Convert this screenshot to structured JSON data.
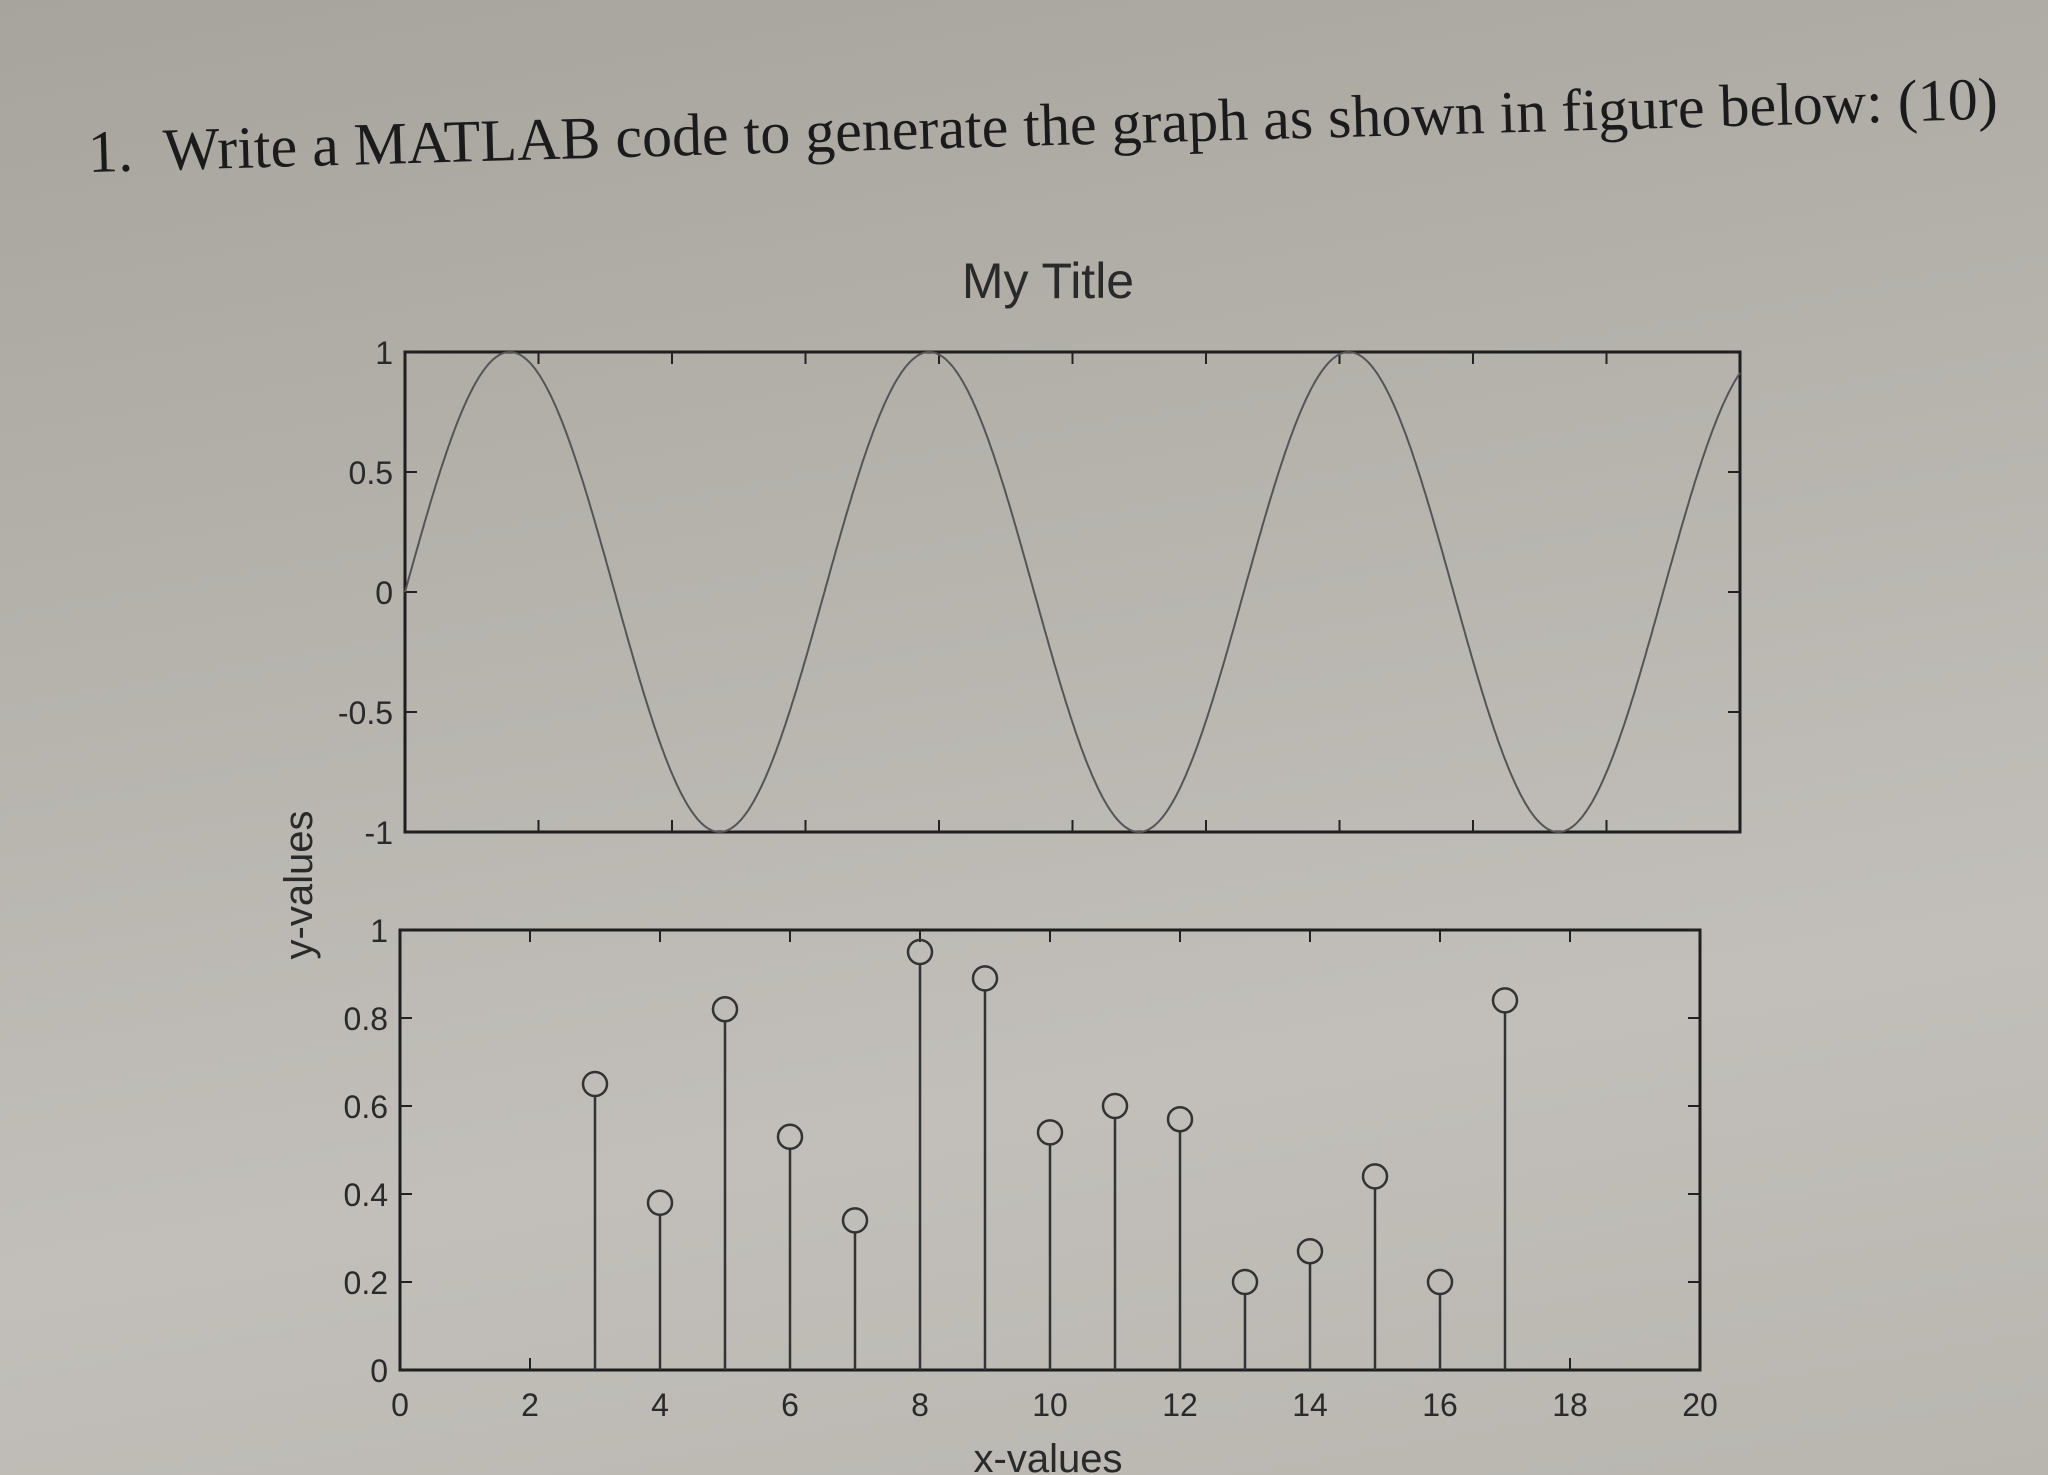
{
  "question": {
    "number": "1.",
    "text": "Write a MATLAB code to generate the graph as shown in figure below: (10)"
  },
  "chart_data": [
    {
      "type": "line",
      "title": "My Title",
      "ylabel": "y-values",
      "xlabel": "",
      "xlim": [
        0,
        20
      ],
      "ylim": [
        -1,
        1
      ],
      "yticks": [
        "1",
        "0.5",
        "0",
        "-0.5",
        "-1"
      ],
      "function": "y = sin(x)",
      "grid": false,
      "color": "#555555"
    },
    {
      "type": "stem",
      "title": "",
      "xlabel": "x-values",
      "ylabel": "",
      "xlim": [
        0,
        20
      ],
      "ylim": [
        0,
        1
      ],
      "xticks": [
        "0",
        "2",
        "4",
        "6",
        "8",
        "10",
        "12",
        "14",
        "16",
        "18",
        "20"
      ],
      "yticks": [
        "1",
        "0.8",
        "0.6",
        "0.4",
        "0.2",
        "0"
      ],
      "x": [
        3,
        4,
        5,
        6,
        7,
        8,
        9,
        10,
        11,
        12,
        13,
        14,
        15,
        16,
        17
      ],
      "values": [
        0.65,
        0.38,
        0.82,
        0.53,
        0.34,
        0.95,
        0.89,
        0.54,
        0.6,
        0.57,
        0.2,
        0.27,
        0.44,
        0.2,
        0.84
      ],
      "grid": false,
      "color": "#333333"
    }
  ]
}
